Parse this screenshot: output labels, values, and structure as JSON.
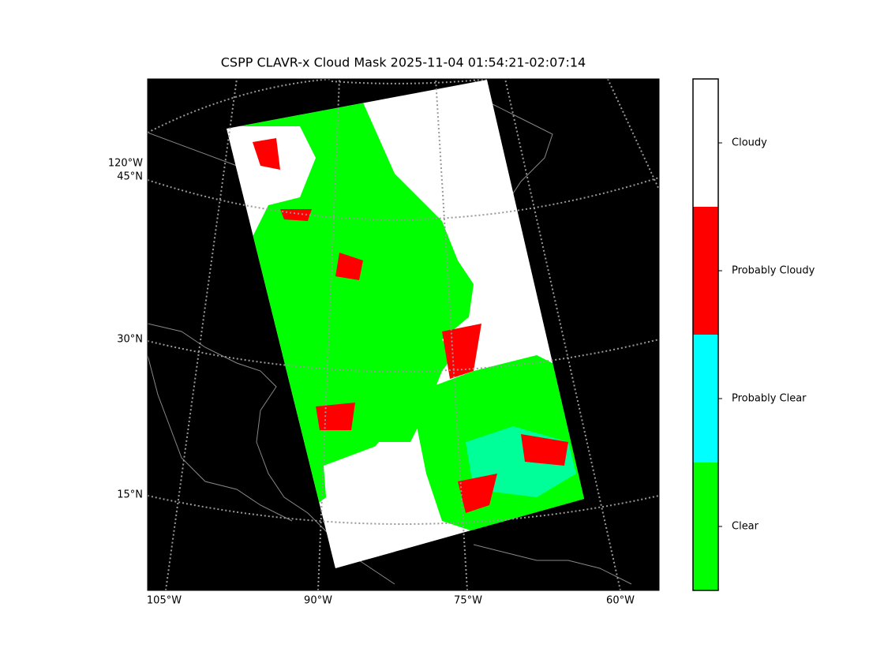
{
  "title": "CSPP CLAVR-x Cloud Mask 2025-11-04 01:54:21-02:07:14",
  "map": {
    "longitude_labels": [
      "105°W",
      "90°W",
      "75°W",
      "60°W"
    ],
    "latitude_labels": [
      "120°W",
      "45°N",
      "30°N",
      "15°N"
    ]
  },
  "colorbar": [
    {
      "label": "Clear",
      "color": "#00ff00"
    },
    {
      "label": "Probably Clear",
      "color": "#00ffff"
    },
    {
      "label": "Probably Cloudy",
      "color": "#ff0000"
    },
    {
      "label": "Cloudy",
      "color": "#ffffff"
    }
  ]
}
